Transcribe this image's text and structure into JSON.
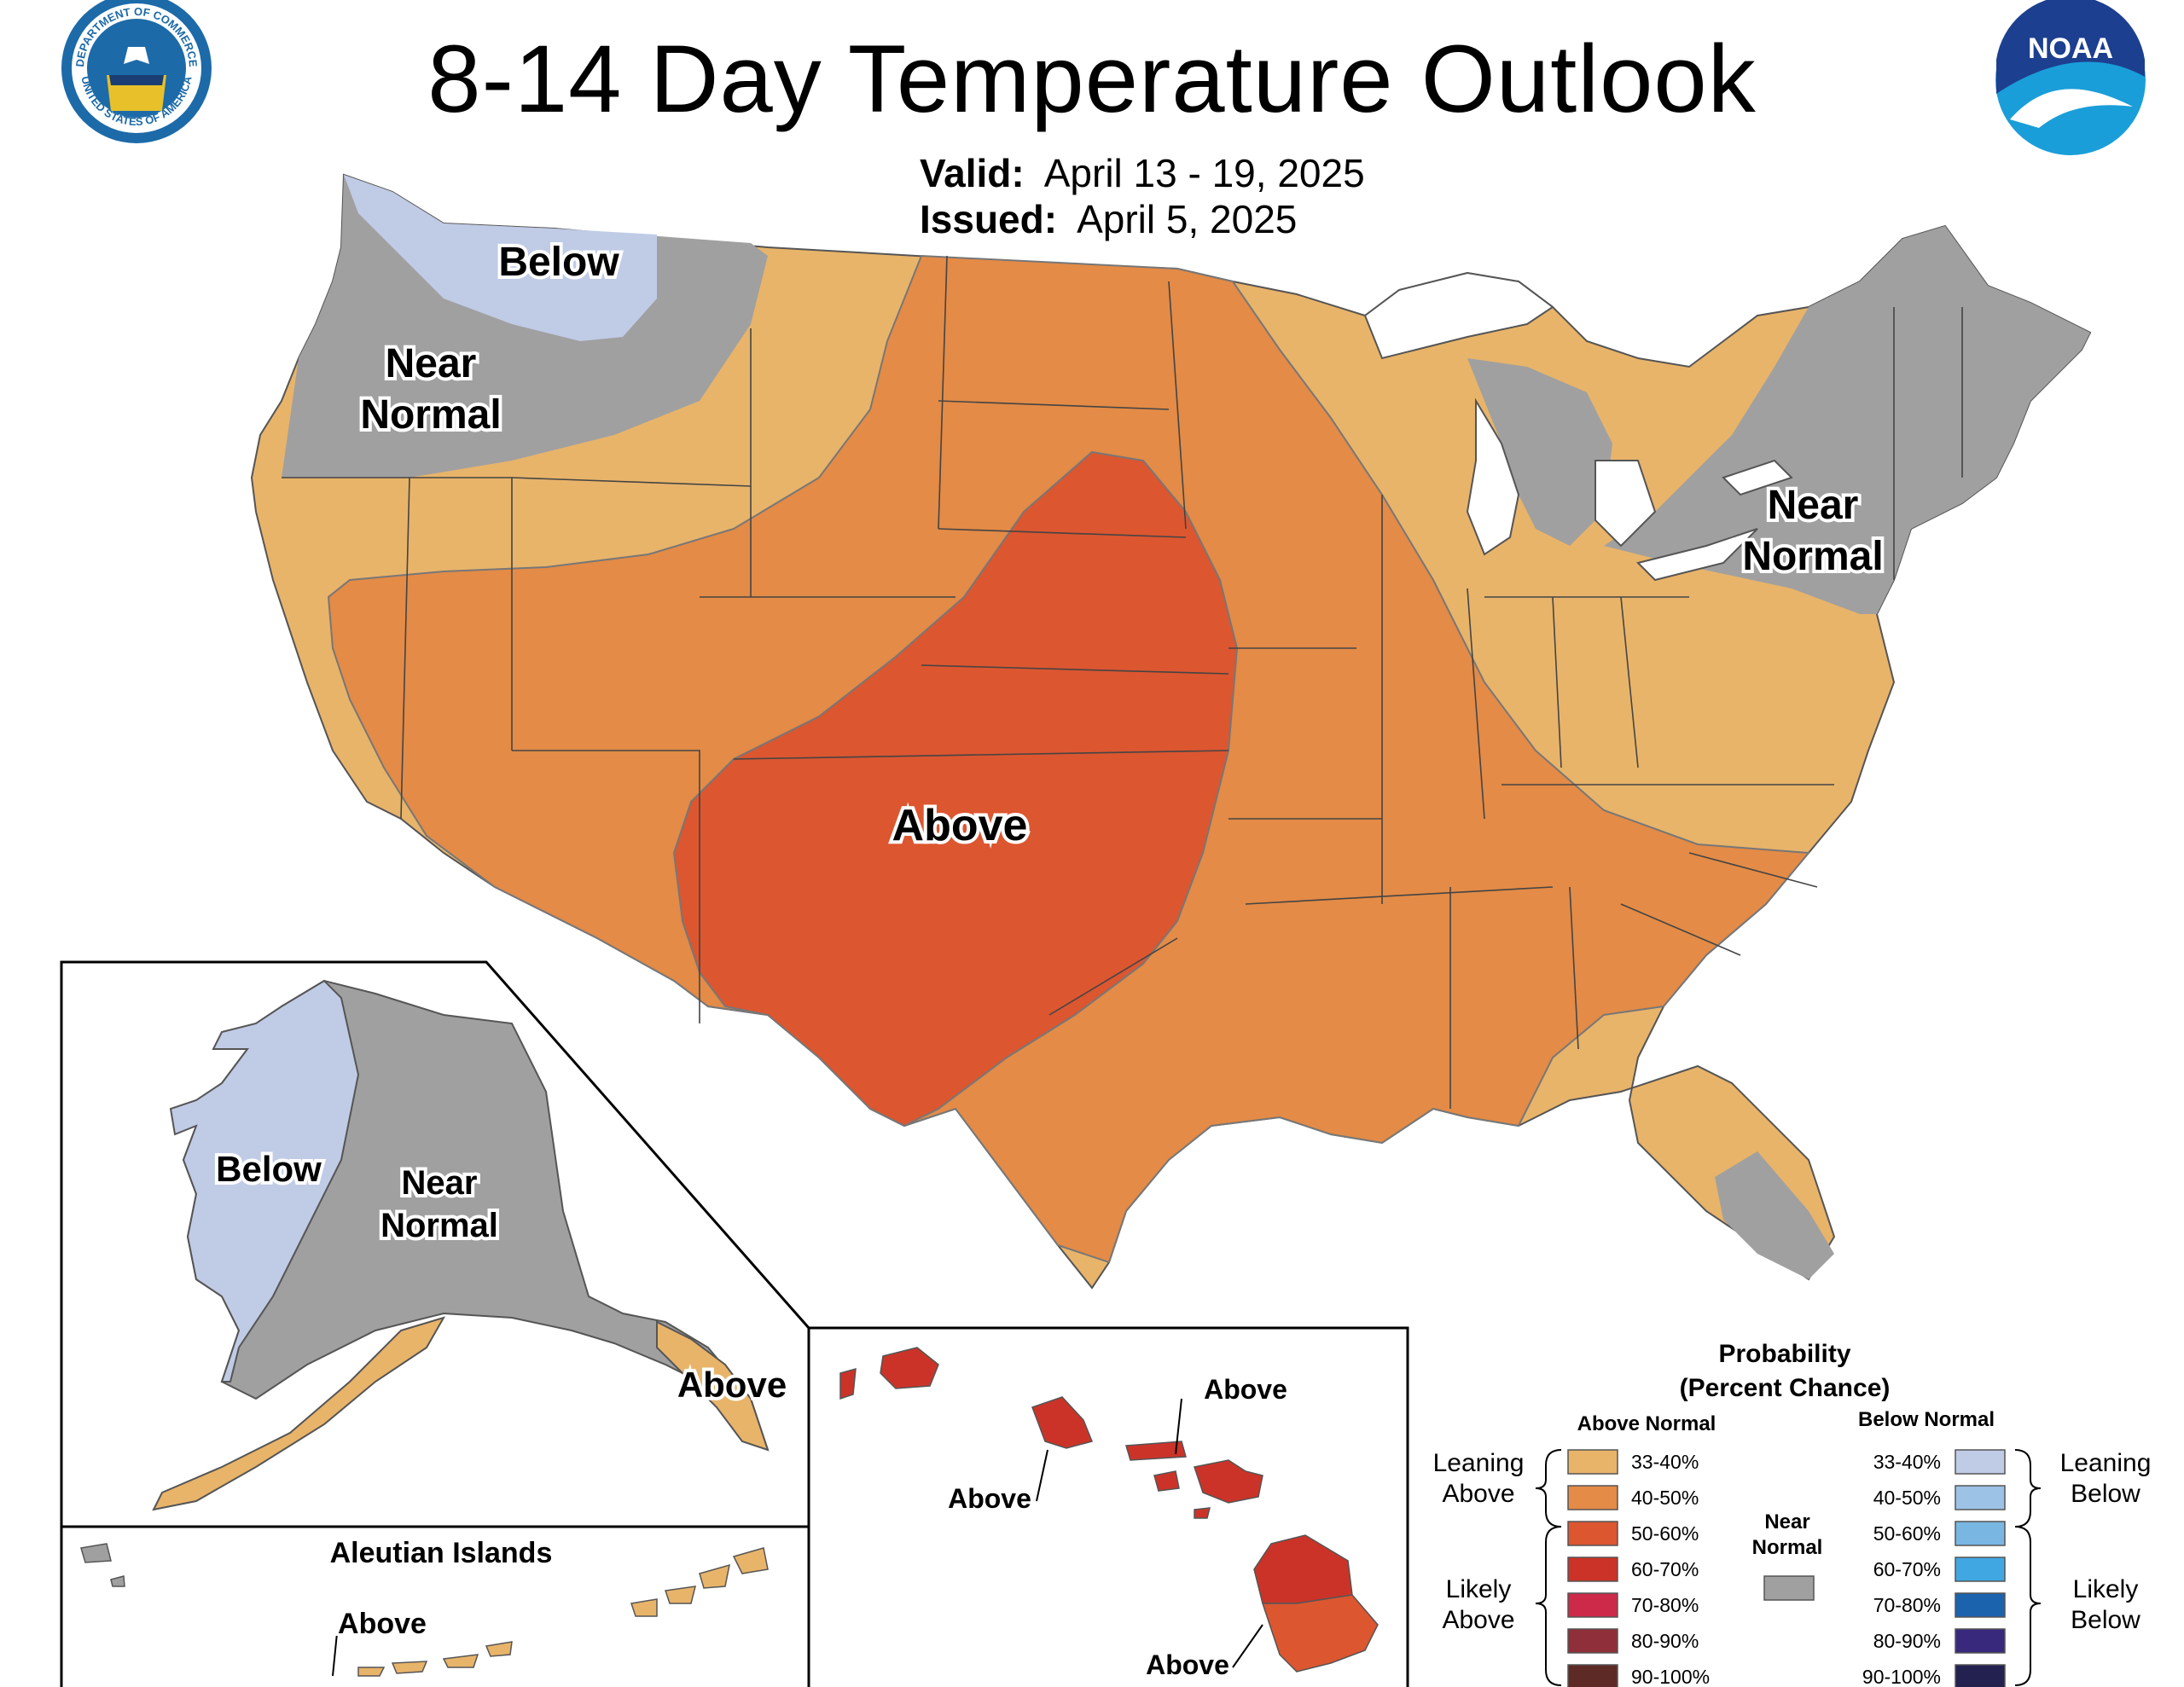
{
  "header": {
    "title": "8-14 Day Temperature Outlook",
    "valid_label": "Valid:",
    "valid_value": "April 13 - 19, 2025",
    "issued_label": "Issued:",
    "issued_value": "April 5, 2025",
    "left_seal": {
      "icon": "department-of-commerce-seal-icon",
      "text_top": "DEPARTMENT OF COMMERCE",
      "text_bottom": "UNITED STATES OF AMERICA"
    },
    "right_logo": {
      "icon": "noaa-logo-icon",
      "text": "NOAA"
    }
  },
  "regions": {
    "conus_below": "Below",
    "conus_near_normal_west_1": "Near",
    "conus_near_normal_west_2": "Normal",
    "conus_near_normal_east_1": "Near",
    "conus_near_normal_east_2": "Normal",
    "conus_above": "Above",
    "alaska_below": "Below",
    "alaska_near_normal_1": "Near",
    "alaska_near_normal_2": "Normal",
    "alaska_above": "Above",
    "aleutian_title": "Aleutian Islands",
    "aleutian_above": "Above",
    "hawaii_above_1": "Above",
    "hawaii_above_2": "Above",
    "hawaii_above_3": "Above"
  },
  "legend": {
    "title_1": "Probability",
    "title_2": "(Percent Chance)",
    "above_header": "Above Normal",
    "below_header": "Below Normal",
    "near_normal_1": "Near",
    "near_normal_2": "Normal",
    "near_normal_color": "#a0a0a0",
    "leaning_above_1": "Leaning",
    "leaning_above_2": "Above",
    "likely_above_1": "Likely",
    "likely_above_2": "Above",
    "leaning_below_1": "Leaning",
    "leaning_below_2": "Below",
    "likely_below_1": "Likely",
    "likely_below_2": "Below",
    "above": [
      {
        "range": "33-40%",
        "color": "#e8b46a"
      },
      {
        "range": "40-50%",
        "color": "#e38b47"
      },
      {
        "range": "50-60%",
        "color": "#dc5630"
      },
      {
        "range": "60-70%",
        "color": "#cc3328"
      },
      {
        "range": "70-80%",
        "color": "#cc2a48"
      },
      {
        "range": "80-90%",
        "color": "#8e2f3a"
      },
      {
        "range": "90-100%",
        "color": "#5e2a26"
      }
    ],
    "below": [
      {
        "range": "33-40%",
        "color": "#c0cbe6"
      },
      {
        "range": "40-50%",
        "color": "#9cc2e6"
      },
      {
        "range": "50-60%",
        "color": "#79b6e2"
      },
      {
        "range": "60-70%",
        "color": "#41a7e2"
      },
      {
        "range": "70-80%",
        "color": "#1b63ad"
      },
      {
        "range": "80-90%",
        "color": "#38297c"
      },
      {
        "range": "90-100%",
        "color": "#23214f"
      }
    ]
  }
}
